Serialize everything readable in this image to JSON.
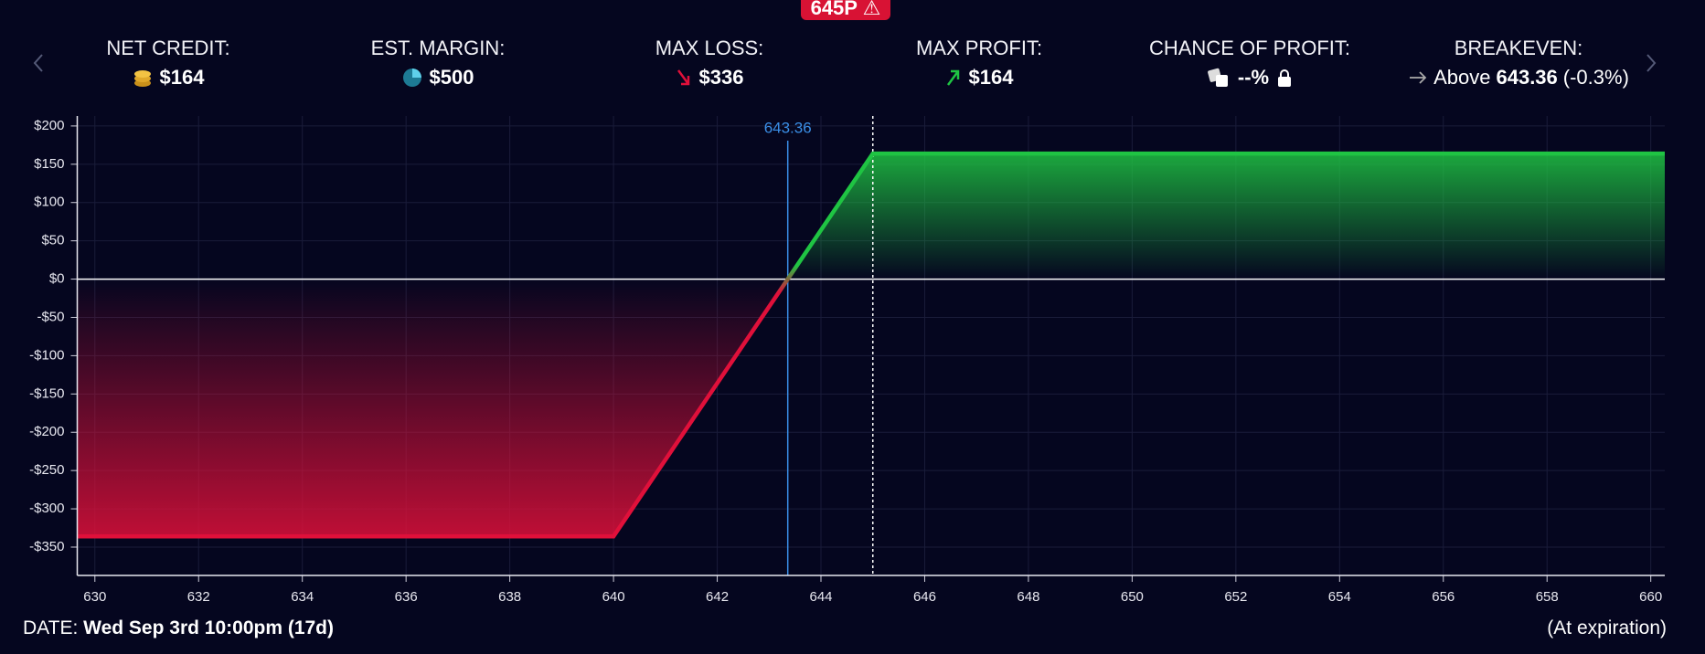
{
  "badge": "645P",
  "stats": [
    {
      "label": "NET CREDIT:",
      "value": "$164"
    },
    {
      "label": "EST. MARGIN:",
      "value": "$500"
    },
    {
      "label": "MAX LOSS:",
      "value": "$336"
    },
    {
      "label": "MAX PROFIT:",
      "value": "$164"
    },
    {
      "label": "CHANCE OF PROFIT:",
      "value": "--%"
    },
    {
      "label": "BREAKEVEN:",
      "prefix": "Above",
      "value": "643.36",
      "suffix": "(-0.3%)"
    }
  ],
  "footer": {
    "date_label": "DATE:",
    "date": "Wed Sep 3rd 10:00pm (17d)",
    "note": "(At expiration)"
  },
  "chart_data": {
    "type": "line",
    "x": [
      629.66,
      640,
      643.36,
      645,
      660.27
    ],
    "values": [
      -336,
      -336,
      0,
      164,
      164
    ],
    "xlim": [
      629.66,
      660.27
    ],
    "ylim": [
      -387,
      213
    ],
    "xticks": [
      630,
      632,
      634,
      636,
      638,
      640,
      642,
      644,
      646,
      648,
      650,
      652,
      654,
      656,
      658,
      660
    ],
    "yticks": [
      {
        "value": 200,
        "label": "$200"
      },
      {
        "value": 150,
        "label": "$150"
      },
      {
        "value": 100,
        "label": "$100"
      },
      {
        "value": 50,
        "label": "$50"
      },
      {
        "value": 0,
        "label": "$0"
      },
      {
        "value": -50,
        "label": "-$50"
      },
      {
        "value": -100,
        "label": "-$100"
      },
      {
        "value": -150,
        "label": "-$150"
      },
      {
        "value": -200,
        "label": "-$200"
      },
      {
        "value": -250,
        "label": "-$250"
      },
      {
        "value": -300,
        "label": "-$300"
      },
      {
        "value": -350,
        "label": "-$350"
      }
    ],
    "breakeven": 643.36,
    "current_price": 645,
    "grid": true,
    "color_profit": "#1fc443",
    "color_loss": "#e0103a",
    "color_breakeven": "#3a8ee6"
  }
}
